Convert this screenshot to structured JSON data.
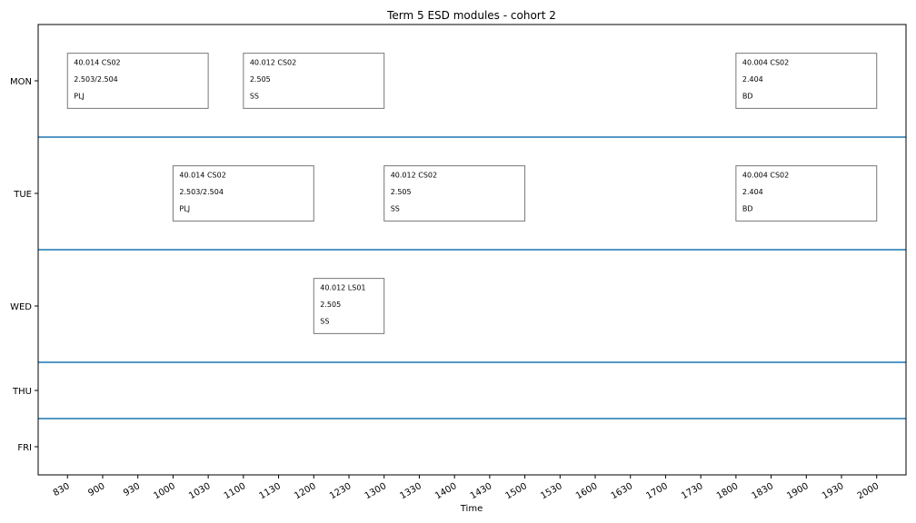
{
  "chart_data": {
    "type": "table",
    "title": "Term 5 ESD modules - cohort 2",
    "xlabel": "Time",
    "ylabel": "",
    "xlim": [
      805,
      2025
    ],
    "x_ticks": [
      "830",
      "900",
      "930",
      "1000",
      "1030",
      "1100",
      "1130",
      "1200",
      "1230",
      "1300",
      "1330",
      "1400",
      "1430",
      "1500",
      "1530",
      "1600",
      "1630",
      "1700",
      "1730",
      "1800",
      "1830",
      "1900",
      "1930",
      "2000"
    ],
    "days": [
      {
        "name": "MON",
        "row_units": 2
      },
      {
        "name": "TUE",
        "row_units": 2
      },
      {
        "name": "WED",
        "row_units": 2
      },
      {
        "name": "THU",
        "row_units": 1
      },
      {
        "name": "FRI",
        "row_units": 1
      }
    ],
    "separator_color": "#1f77b4",
    "events": [
      {
        "day": "MON",
        "start": "830",
        "end": "1030",
        "lines": [
          "40.014 CS02",
          "2.503/2.504",
          "PLJ"
        ]
      },
      {
        "day": "MON",
        "start": "1100",
        "end": "1300",
        "lines": [
          "40.012 CS02",
          "2.505",
          "SS"
        ]
      },
      {
        "day": "MON",
        "start": "1800",
        "end": "2000",
        "lines": [
          "40.004 CS02",
          "2.404",
          "BD"
        ]
      },
      {
        "day": "TUE",
        "start": "1000",
        "end": "1200",
        "lines": [
          "40.014 CS02",
          "2.503/2.504",
          "PLJ"
        ]
      },
      {
        "day": "TUE",
        "start": "1300",
        "end": "1500",
        "lines": [
          "40.012 CS02",
          "2.505",
          "SS"
        ]
      },
      {
        "day": "TUE",
        "start": "1800",
        "end": "2000",
        "lines": [
          "40.004 CS02",
          "2.404",
          "BD"
        ]
      },
      {
        "day": "WED",
        "start": "1200",
        "end": "1300",
        "lines": [
          "40.012 LS01",
          "2.505",
          "SS"
        ]
      }
    ]
  }
}
